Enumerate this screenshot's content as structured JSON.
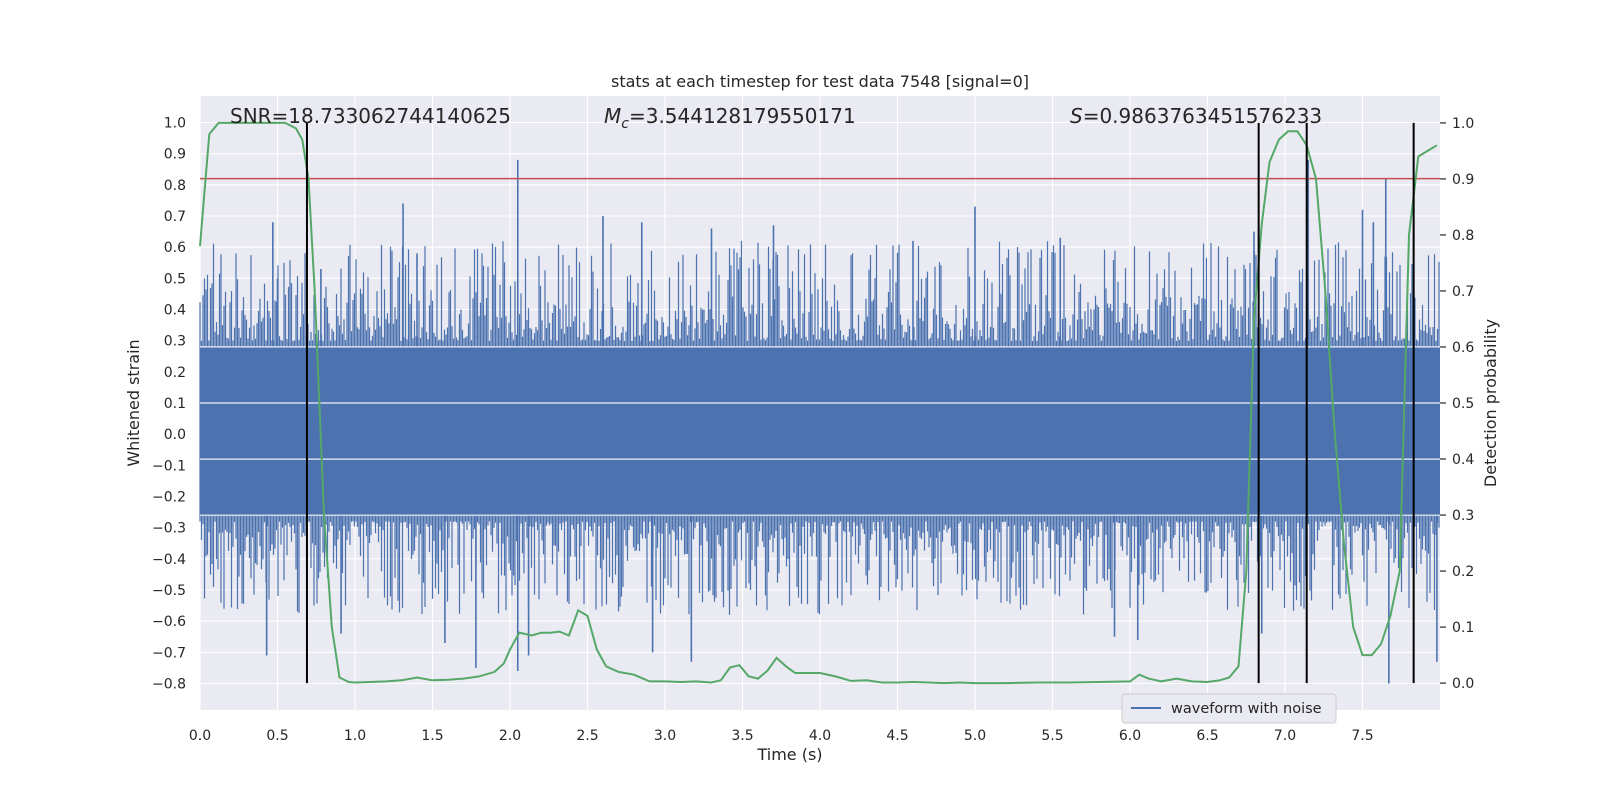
{
  "chart_data": {
    "type": "line",
    "title": "stats at each timestep for test data 7548 [signal=0]",
    "xlabel": "Time (s)",
    "ylabel": "Whitened strain",
    "y2label": "Detection probability",
    "xlim": [
      0.0,
      8.0
    ],
    "ylim": [
      -0.885,
      1.085
    ],
    "y2lim": [
      -0.048,
      1.048
    ],
    "xticks": [
      "0.0",
      "0.5",
      "1.0",
      "1.5",
      "2.0",
      "2.5",
      "3.0",
      "3.5",
      "4.0",
      "4.5",
      "5.0",
      "5.5",
      "6.0",
      "6.5",
      "7.0",
      "7.5"
    ],
    "yticks": [
      "1.0",
      "0.9",
      "0.8",
      "0.7",
      "0.6",
      "0.5",
      "0.4",
      "0.3",
      "0.2",
      "0.1",
      "0.0",
      "−0.1",
      "−0.2",
      "−0.3",
      "−0.4",
      "−0.5",
      "−0.6",
      "−0.7",
      "−0.8"
    ],
    "y2ticks": [
      "0.0",
      "0.1",
      "0.2",
      "0.3",
      "0.4",
      "0.5",
      "0.6",
      "0.7",
      "0.8",
      "0.9",
      "1.0"
    ],
    "grid": true,
    "legend": {
      "position": "lower-right",
      "entries": [
        "waveform with noise"
      ]
    },
    "annotations": {
      "snr": "SNR=18.733062744140625",
      "mc_symbol": "M",
      "mc_sub": "c",
      "mc_value": "=3.544128179550171",
      "s_symbol": "S",
      "s_value": "=0.9863763451576233"
    },
    "threshold": {
      "value": 0.82,
      "axis": "left",
      "color": "#c44e52"
    },
    "vertical_markers": {
      "x": [
        0.69,
        6.83,
        7.14,
        7.83
      ],
      "color": "#000000"
    },
    "colors": {
      "waveform": "#4c72b0",
      "probability": "#55a868",
      "background": "#eaeaf2",
      "grid": "#ffffff"
    },
    "series": [
      {
        "name": "waveform with noise",
        "axis": "left",
        "description_stats": {
          "core_band": [
            -0.26,
            0.28
          ],
          "max": 0.88,
          "min": -0.8
        },
        "spikes": [
          {
            "x": 0.47,
            "y": 0.68
          },
          {
            "x": 0.5,
            "y": 0.5
          },
          {
            "x": 0.43,
            "y": -0.71
          },
          {
            "x": 0.78,
            "y": 0.53
          },
          {
            "x": 0.91,
            "y": -0.64
          },
          {
            "x": 1.31,
            "y": 0.74
          },
          {
            "x": 1.4,
            "y": 0.58
          },
          {
            "x": 1.58,
            "y": -0.67
          },
          {
            "x": 1.78,
            "y": -0.75
          },
          {
            "x": 2.05,
            "y": 0.88
          },
          {
            "x": 2.05,
            "y": -0.76
          },
          {
            "x": 2.12,
            "y": -0.71
          },
          {
            "x": 2.6,
            "y": 0.7
          },
          {
            "x": 2.85,
            "y": 0.68
          },
          {
            "x": 2.92,
            "y": -0.7
          },
          {
            "x": 3.17,
            "y": -0.73
          },
          {
            "x": 3.3,
            "y": 0.66
          },
          {
            "x": 3.7,
            "y": 0.67
          },
          {
            "x": 4.6,
            "y": 0.62
          },
          {
            "x": 5.0,
            "y": 0.73
          },
          {
            "x": 5.55,
            "y": 0.63
          },
          {
            "x": 5.9,
            "y": -0.65
          },
          {
            "x": 6.05,
            "y": -0.66
          },
          {
            "x": 6.8,
            "y": 0.65
          },
          {
            "x": 6.85,
            "y": -0.64
          },
          {
            "x": 7.15,
            "y": 0.88
          },
          {
            "x": 7.5,
            "y": 0.72
          },
          {
            "x": 7.57,
            "y": 0.68
          },
          {
            "x": 7.65,
            "y": 0.82
          },
          {
            "x": 7.67,
            "y": -0.8
          },
          {
            "x": 7.83,
            "y": 0.72
          },
          {
            "x": 7.98,
            "y": -0.73
          }
        ]
      },
      {
        "name": "",
        "axis": "right",
        "x": [
          0.0,
          0.06,
          0.12,
          0.2,
          0.3,
          0.4,
          0.5,
          0.55,
          0.62,
          0.66,
          0.7,
          0.74,
          0.8,
          0.85,
          0.9,
          0.96,
          1.0,
          1.1,
          1.2,
          1.3,
          1.4,
          1.5,
          1.6,
          1.7,
          1.8,
          1.9,
          1.96,
          2.0,
          2.06,
          2.14,
          2.2,
          2.26,
          2.32,
          2.38,
          2.44,
          2.5,
          2.56,
          2.62,
          2.7,
          2.8,
          2.9,
          3.0,
          3.1,
          3.2,
          3.3,
          3.36,
          3.42,
          3.48,
          3.54,
          3.6,
          3.66,
          3.72,
          3.78,
          3.84,
          3.9,
          4.0,
          4.1,
          4.2,
          4.3,
          4.4,
          4.5,
          4.6,
          4.7,
          4.8,
          4.9,
          5.0,
          5.2,
          5.4,
          5.6,
          5.8,
          6.0,
          6.06,
          6.12,
          6.2,
          6.3,
          6.4,
          6.5,
          6.58,
          6.64,
          6.7,
          6.75,
          6.8,
          6.85,
          6.9,
          6.96,
          7.02,
          7.08,
          7.14,
          7.2,
          7.26,
          7.32,
          7.38,
          7.44,
          7.5,
          7.56,
          7.62,
          7.68,
          7.74,
          7.8,
          7.86,
          7.92,
          7.98
        ],
        "y": [
          0.78,
          0.98,
          1.0,
          1.0,
          1.0,
          1.0,
          1.0,
          1.0,
          0.99,
          0.97,
          0.9,
          0.7,
          0.3,
          0.1,
          0.01,
          0.002,
          0.001,
          0.002,
          0.003,
          0.005,
          0.01,
          0.005,
          0.006,
          0.008,
          0.012,
          0.02,
          0.035,
          0.06,
          0.09,
          0.085,
          0.09,
          0.09,
          0.092,
          0.085,
          0.13,
          0.12,
          0.06,
          0.03,
          0.02,
          0.015,
          0.003,
          0.003,
          0.002,
          0.003,
          0.001,
          0.005,
          0.028,
          0.032,
          0.012,
          0.008,
          0.022,
          0.045,
          0.03,
          0.018,
          0.018,
          0.018,
          0.012,
          0.004,
          0.005,
          0.001,
          0.001,
          0.002,
          0.001,
          0.0,
          0.001,
          0.0,
          0.0,
          0.001,
          0.001,
          0.002,
          0.003,
          0.015,
          0.008,
          0.003,
          0.008,
          0.003,
          0.002,
          0.005,
          0.01,
          0.03,
          0.2,
          0.65,
          0.82,
          0.93,
          0.97,
          0.985,
          0.985,
          0.96,
          0.9,
          0.7,
          0.45,
          0.25,
          0.1,
          0.05,
          0.05,
          0.07,
          0.12,
          0.2,
          0.8,
          0.94,
          0.95,
          0.96
        ]
      }
    ]
  }
}
